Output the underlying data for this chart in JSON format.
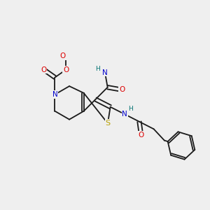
{
  "bg": "#efefef",
  "bond_color": "#1a1a1a",
  "lw": 1.3,
  "fs": 7.5,
  "figsize": [
    3.0,
    3.0
  ],
  "dpi": 100,
  "colors": {
    "N": "#0000cc",
    "O": "#dd0000",
    "S": "#b8a000",
    "H": "#007070",
    "C": "#1a1a1a"
  }
}
